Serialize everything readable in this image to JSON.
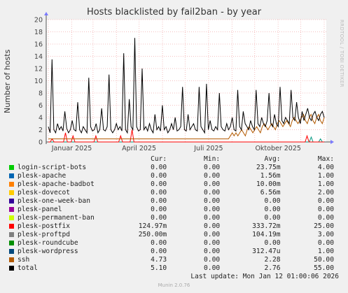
{
  "chart_data": {
    "type": "line",
    "title": "Hosts blacklisted by fail2ban - by year",
    "ylabel": "Number of hosts",
    "ylim": [
      0,
      20
    ],
    "yticks": [
      0,
      2,
      4,
      6,
      8,
      10,
      12,
      14,
      16,
      18,
      20
    ],
    "x_tick_labels": [
      "Januar 2025",
      "April 2025",
      "Juli 2025",
      "Oktober 2025"
    ],
    "grid": true,
    "series": [
      {
        "name": "total",
        "color": "#000000",
        "values": [
          2.5,
          1.5,
          13.5,
          2.0,
          1.5,
          3.0,
          2.0,
          2.5,
          1.8,
          5.0,
          2.2,
          1.5,
          2.0,
          3.5,
          2.0,
          1.8,
          6.5,
          2.0,
          1.5,
          2.5,
          2.0,
          1.5,
          10.5,
          2.5,
          1.8,
          2.0,
          3.0,
          1.5,
          2.0,
          5.5,
          2.0,
          1.8,
          2.5,
          11.0,
          2.0,
          1.5,
          2.0,
          3.0,
          2.0,
          2.5,
          1.8,
          14.5,
          2.0,
          1.5,
          7.0,
          2.5,
          2.0,
          17.0,
          2.5,
          1.8,
          2.0,
          12.0,
          2.0,
          2.5,
          1.8,
          3.0,
          2.0,
          1.5,
          4.5,
          2.0,
          2.5,
          1.8,
          6.0,
          2.0,
          2.5,
          1.5,
          2.0,
          3.0,
          2.0,
          4.0,
          1.8,
          2.0,
          2.5,
          9.0,
          2.0,
          1.8,
          4.5,
          2.0,
          2.5,
          3.0,
          2.0,
          1.8,
          9.0,
          2.5,
          2.0,
          1.5,
          9.5,
          2.0,
          3.5,
          2.0,
          1.8,
          2.5,
          2.0,
          8.0,
          2.5,
          2.0,
          1.8,
          3.0,
          2.0,
          2.5,
          4.0,
          2.0,
          1.8,
          8.5,
          2.5,
          2.0,
          5.0,
          3.0,
          2.5,
          2.0,
          3.5,
          2.5,
          2.0,
          8.5,
          3.0,
          2.5,
          4.0,
          3.0,
          2.5,
          3.5,
          8.0,
          3.0,
          2.5,
          4.5,
          3.0,
          2.5,
          9.0,
          3.5,
          3.0,
          4.0,
          3.5,
          3.0,
          8.5,
          4.0,
          3.5,
          6.5,
          4.0,
          3.0,
          5.0,
          3.5,
          4.5,
          5.5,
          4.0,
          3.5,
          4.5,
          5.0,
          4.0,
          3.5,
          4.5,
          5.0,
          4.0
        ]
      },
      {
        "name": "ssh",
        "color": "#b35a00",
        "values": [
          0.5,
          0.5,
          0.5,
          0.5,
          0.5,
          0.5,
          0.5,
          0.5,
          0.5,
          0.5,
          0.5,
          0.5,
          0.5,
          0.5,
          0.5,
          0.5,
          0.5,
          0.5,
          0.5,
          0.5,
          0.5,
          0.5,
          0.5,
          0.5,
          0.5,
          0.5,
          0.5,
          0.5,
          0.5,
          0.5,
          0.5,
          0.5,
          0.5,
          0.5,
          0.5,
          0.5,
          0.5,
          0.5,
          0.5,
          0.5,
          0.5,
          0.5,
          0.5,
          0.5,
          0.5,
          0.5,
          0.5,
          0.5,
          0.5,
          0.5,
          0.5,
          0.5,
          0.5,
          0.5,
          0.5,
          0.5,
          0.5,
          0.5,
          0.5,
          0.5,
          0.5,
          0.5,
          0.5,
          0.5,
          0.5,
          0.5,
          0.5,
          0.5,
          0.5,
          0.5,
          0.5,
          0.5,
          0.5,
          0.5,
          0.5,
          0.5,
          0.5,
          0.5,
          0.5,
          0.5,
          0.5,
          0.5,
          0.5,
          0.5,
          0.5,
          0.5,
          0.5,
          0.5,
          0.5,
          0.5,
          0.5,
          0.5,
          0.5,
          0.5,
          0.5,
          0.5,
          0.5,
          1.0,
          1.5,
          1.0,
          1.5,
          1.0,
          1.5,
          2.0,
          1.5,
          1.0,
          2.0,
          2.5,
          2.0,
          1.5,
          2.0,
          2.5,
          2.0,
          1.5,
          2.5,
          3.0,
          2.5,
          2.0,
          2.5,
          3.0,
          2.5,
          2.0,
          3.0,
          3.5,
          3.0,
          2.5,
          3.0,
          3.5,
          3.0,
          2.5,
          3.5,
          4.0,
          3.5,
          3.0,
          3.5,
          4.0,
          4.5,
          3.5,
          3.0,
          4.0,
          4.5,
          3.5,
          3.0,
          4.0,
          4.5,
          3.5,
          3.0,
          4.0
        ]
      },
      {
        "name": "plesk-postfix",
        "color": "#ff0000",
        "values": [
          0,
          0,
          0.5,
          0,
          0,
          0,
          0,
          0,
          0,
          1.5,
          0,
          0,
          0,
          1.0,
          0,
          0,
          0,
          0,
          0,
          0,
          0,
          0,
          0,
          0,
          0,
          1.0,
          0,
          0,
          0,
          0,
          0,
          0,
          0,
          0,
          0,
          0,
          0,
          0,
          1.0,
          0,
          0,
          0,
          0,
          0,
          2.0,
          0,
          0,
          0,
          0,
          0,
          0,
          0,
          0,
          0,
          0,
          0,
          0,
          0,
          0,
          0,
          0,
          0,
          0,
          0,
          0,
          0,
          0,
          0,
          0,
          0,
          0,
          0,
          0,
          0,
          0,
          0,
          0,
          0,
          0,
          0,
          0,
          0,
          0,
          0,
          0,
          0,
          0,
          0,
          0,
          0,
          0,
          0,
          0,
          0,
          0,
          0,
          0,
          0,
          0,
          0,
          0,
          0,
          0,
          0,
          0,
          0,
          0,
          0,
          0,
          0,
          0,
          0,
          0,
          0,
          0,
          0,
          0,
          0,
          0,
          0,
          0,
          0,
          0,
          0,
          0,
          0,
          0,
          0,
          0,
          0,
          0,
          0,
          0,
          0,
          0,
          0,
          1.0,
          0,
          0,
          0,
          0,
          0,
          0,
          0,
          0,
          0
        ]
      },
      {
        "name": "plesk-roundcube",
        "color": "#009980",
        "values": [
          0,
          0,
          0,
          0,
          0,
          0,
          0,
          0,
          0,
          0,
          0,
          0,
          0,
          0,
          0,
          0,
          0,
          0,
          0,
          0,
          0,
          0,
          0,
          0,
          0,
          0,
          0,
          0,
          0,
          0,
          0,
          0,
          0,
          0,
          0,
          0,
          0,
          0,
          0,
          0,
          0,
          0,
          0,
          0,
          0,
          0,
          0,
          0,
          0,
          0,
          0,
          0,
          0,
          0,
          0,
          0,
          0,
          0,
          0,
          0,
          0,
          0,
          0,
          0,
          0,
          0,
          0,
          0,
          0,
          0,
          0,
          0,
          0,
          0,
          0,
          0,
          0,
          0,
          0,
          0,
          0,
          0,
          0,
          0,
          0,
          0,
          0,
          0,
          0,
          0,
          0,
          0,
          0,
          0,
          0,
          0,
          0,
          0,
          0,
          0,
          0,
          0,
          0,
          0,
          0,
          0,
          0,
          0,
          0,
          0,
          0,
          0,
          0,
          0,
          0,
          0,
          0,
          0,
          0,
          0,
          0,
          0,
          0,
          0,
          0,
          0,
          0,
          0,
          0,
          0,
          0,
          0,
          0,
          0,
          0,
          0,
          0,
          0,
          0,
          0,
          0,
          0,
          0.8,
          0,
          0,
          0,
          0,
          0.5,
          0,
          0
        ]
      },
      {
        "name": "plesk-wordpress",
        "color": "#2a6a9a",
        "values": [
          0,
          0,
          0,
          0,
          0,
          0,
          0,
          0,
          0,
          0,
          0,
          0,
          0,
          0,
          0,
          0,
          0,
          0,
          0,
          0,
          0,
          0,
          0,
          0,
          0,
          0,
          0,
          0,
          0,
          0,
          0,
          0,
          0,
          0,
          0,
          0,
          0,
          0,
          0,
          0,
          0,
          0,
          0,
          0,
          0,
          0,
          0,
          0,
          0,
          0,
          0,
          0,
          0,
          0,
          0,
          0,
          0,
          0,
          0,
          0,
          0,
          0,
          0,
          0,
          0,
          0,
          0,
          0,
          0,
          0,
          0,
          0,
          0,
          0,
          0,
          0,
          0,
          0,
          0,
          0,
          0,
          0,
          0,
          0,
          0,
          0,
          0,
          0,
          0,
          0,
          0,
          0,
          0,
          0,
          0,
          0,
          0,
          0,
          0,
          0,
          0,
          0,
          0,
          0,
          0,
          0,
          0,
          0,
          0,
          0,
          0,
          0,
          0,
          0,
          0,
          0,
          0,
          0,
          0,
          0,
          0,
          0,
          0,
          0,
          0,
          0,
          0,
          0,
          0,
          0,
          0,
          0,
          0,
          0,
          0,
          0,
          0,
          0,
          0,
          0,
          0,
          0,
          0,
          0,
          0,
          0,
          0,
          0,
          0,
          0
        ]
      }
    ]
  },
  "side_label": "RRDTOOL / TOBI OETIKER",
  "legend": {
    "headers": {
      "cur": "Cur:",
      "min": "Min:",
      "avg": "Avg:",
      "max": "Max:"
    },
    "rows": [
      {
        "name": "login-script-bots",
        "color": "#00cc00",
        "cur": "0.00",
        "min": "0.00",
        "avg": "23.75m",
        "max": "4.00"
      },
      {
        "name": "plesk-apache",
        "color": "#0066b3",
        "cur": "0.00",
        "min": "0.00",
        "avg": "1.56m",
        "max": "1.00"
      },
      {
        "name": "plesk-apache-badbot",
        "color": "#ff8000",
        "cur": "0.00",
        "min": "0.00",
        "avg": "10.00m",
        "max": "1.00"
      },
      {
        "name": "plesk-dovecot",
        "color": "#ffcc00",
        "cur": "0.00",
        "min": "0.00",
        "avg": "6.56m",
        "max": "2.00"
      },
      {
        "name": "plesk-one-week-ban",
        "color": "#330099",
        "cur": "0.00",
        "min": "0.00",
        "avg": "0.00",
        "max": "0.00"
      },
      {
        "name": "plesk-panel",
        "color": "#990099",
        "cur": "0.00",
        "min": "0.00",
        "avg": "0.00",
        "max": "0.00"
      },
      {
        "name": "plesk-permanent-ban",
        "color": "#ccff00",
        "cur": "0.00",
        "min": "0.00",
        "avg": "0.00",
        "max": "0.00"
      },
      {
        "name": "plesk-postfix",
        "color": "#ff0000",
        "cur": "124.97m",
        "min": "0.00",
        "avg": "333.72m",
        "max": "25.00"
      },
      {
        "name": "plesk-proftpd",
        "color": "#808080",
        "cur": "250.00m",
        "min": "0.00",
        "avg": "104.19m",
        "max": "3.00"
      },
      {
        "name": "plesk-roundcube",
        "color": "#008f00",
        "cur": "0.00",
        "min": "0.00",
        "avg": "0.00",
        "max": "0.00"
      },
      {
        "name": "plesk-wordpress",
        "color": "#00487d",
        "cur": "0.00",
        "min": "0.00",
        "avg": "312.47u",
        "max": "1.00"
      },
      {
        "name": "ssh",
        "color": "#b35a00",
        "cur": "4.73",
        "min": "0.00",
        "avg": "2.28",
        "max": "50.00"
      },
      {
        "name": "total",
        "color": "#000000",
        "cur": "5.10",
        "min": "0.00",
        "avg": "2.76",
        "max": "55.00"
      }
    ]
  },
  "footer": {
    "last_update": "Last update: Mon Jan 12 01:00:06 2026",
    "munin": "Munin 2.0.76"
  }
}
